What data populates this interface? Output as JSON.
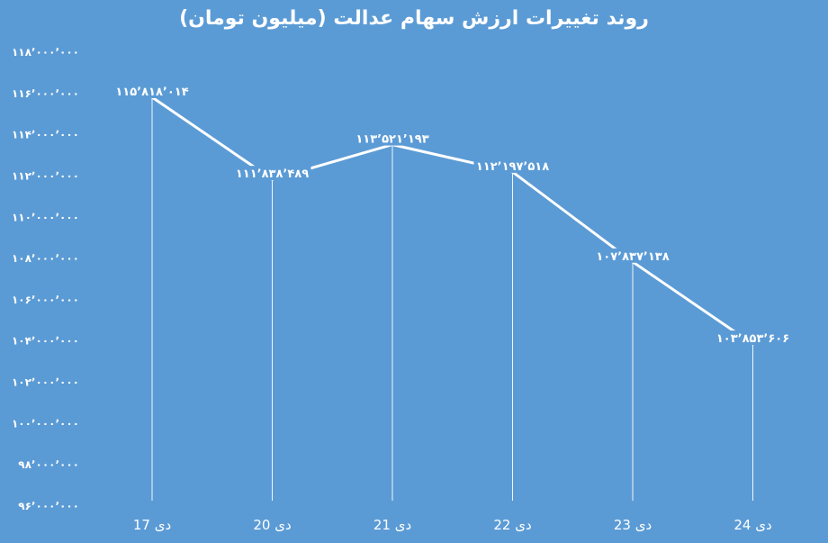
{
  "chart_data": {
    "type": "line",
    "title": "روند تغییرات ارزش سهام عدالت (میلیون تومان)",
    "categories": [
      "17 دی",
      "20 دی",
      "21 دی",
      "22 دی",
      "23 دی",
      "24 دی"
    ],
    "series": [
      {
        "values": [
          115818014,
          111838489,
          113521193,
          112197518,
          107837138,
          103853606
        ],
        "labels": [
          "۱۱۵٬۸۱۸٬۰۱۴",
          "۱۱۱٬۸۳۸٬۴۸۹",
          "۱۱۳٬۵۲۱٬۱۹۳",
          "۱۱۲٬۱۹۷٬۵۱۸",
          "۱۰۷٬۸۳۷٬۱۳۸",
          "۱۰۳٬۸۵۳٬۶۰۶"
        ]
      }
    ],
    "ylim": [
      96000000,
      118000000
    ],
    "yticks": [
      118000000,
      116000000,
      114000000,
      112000000,
      110000000,
      108000000,
      106000000,
      104000000,
      102000000,
      100000000,
      98000000,
      96000000
    ],
    "ytick_labels": [
      "۱۱۸٬۰۰۰٬۰۰۰",
      "۱۱۶٬۰۰۰٬۰۰۰",
      "۱۱۴٬۰۰۰٬۰۰۰",
      "۱۱۲٬۰۰۰٬۰۰۰",
      "۱۱۰٬۰۰۰٬۰۰۰",
      "۱۰۸٬۰۰۰٬۰۰۰",
      "۱۰۶٬۰۰۰٬۰۰۰",
      "۱۰۴٬۰۰۰٬۰۰۰",
      "۱۰۲٬۰۰۰٬۰۰۰",
      "۱۰۰٬۰۰۰٬۰۰۰",
      "۹۸٬۰۰۰٬۰۰۰",
      "۹۶٬۰۰۰٬۰۰۰"
    ],
    "grid": false,
    "drop_lines": true,
    "colors": {
      "background": "#5b9bd5",
      "line": "#ffffff",
      "text": "#ffffff"
    }
  }
}
